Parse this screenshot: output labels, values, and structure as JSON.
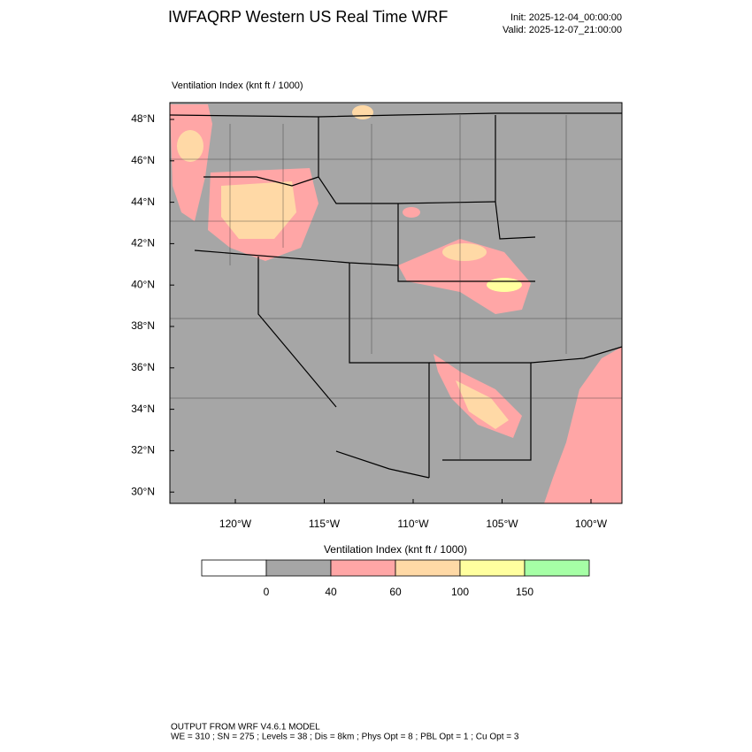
{
  "header": {
    "title": "IWFAQRP Western US Real Time WRF",
    "init": "Init: 2025-12-04_00:00:00",
    "valid": "Valid: 2025-12-07_21:00:00"
  },
  "map": {
    "label": "Ventilation Index   (knt ft / 1000)",
    "lat_labels": [
      "48°N",
      "46°N",
      "44°N",
      "42°N",
      "40°N",
      "38°N",
      "36°N",
      "34°N",
      "32°N",
      "30°N"
    ],
    "lon_labels": [
      "120°W",
      "115°W",
      "110°W",
      "105°W",
      "100°W"
    ]
  },
  "colorbar": {
    "title": "Ventilation Index   (knt ft / 1000)",
    "colors": [
      "#ffffff",
      "#a6a6a6",
      "#ffa6a6",
      "#ffd9a6",
      "#ffff9f",
      "#a6ffa6"
    ],
    "labels": [
      "0",
      "40",
      "60",
      "100",
      "150"
    ]
  },
  "footer": {
    "line1": "OUTPUT FROM WRF V4.6.1 MODEL",
    "line2": "WE = 310 ; SN = 275 ; Levels = 38 ; Dis = 8km ; Phys Opt = 8 ; PBL Opt = 1 ; Cu Opt = 3"
  }
}
